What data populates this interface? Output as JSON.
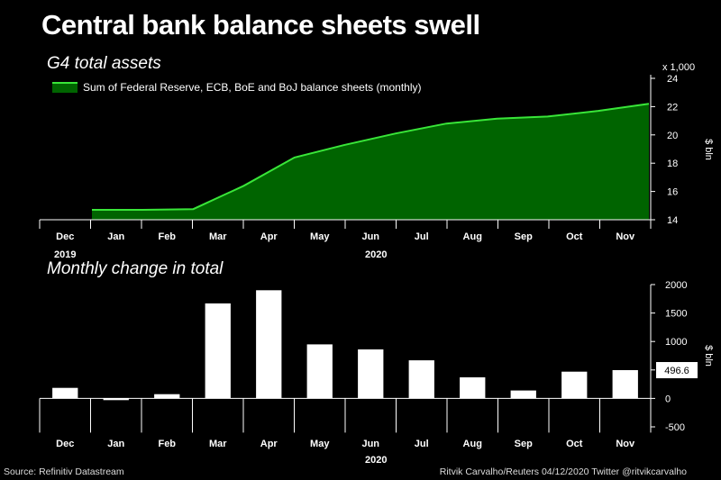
{
  "title": "Central bank balance sheets swell",
  "colors": {
    "area_fill": "#006400",
    "line": "#39e639",
    "bar": "#ffffff",
    "axis": "#ffffff"
  },
  "chart_data": [
    {
      "type": "area",
      "title": "G4 total assets",
      "ylabel": "$ bln",
      "yunit": "x 1,000",
      "ylim": [
        14,
        24
      ],
      "yticks": [
        "14",
        "16",
        "18",
        "20",
        "22",
        "24"
      ],
      "categories": [
        "Dec",
        "Jan",
        "Feb",
        "Mar",
        "Apr",
        "May",
        "Jun",
        "Jul",
        "Aug",
        "Sep",
        "Oct",
        "Nov"
      ],
      "year_labels": {
        "Dec": "2019",
        "Jun": "2020"
      },
      "series": [
        {
          "name": "Sum of Federal Reserve, ECB, BoE and BoJ balance sheets (monthly)",
          "values": [
            14.7,
            14.7,
            14.75,
            16.4,
            18.4,
            19.3,
            20.1,
            20.8,
            21.15,
            21.3,
            21.7,
            22.2
          ]
        }
      ],
      "legend": "top-left"
    },
    {
      "type": "bar",
      "title": "Monthly change in total",
      "ylabel": "$ bln",
      "ylim": [
        -500,
        2000
      ],
      "yticks": [
        "-500",
        "0",
        "500",
        "1000",
        "1500",
        "2000"
      ],
      "categories": [
        "Dec",
        "Jan",
        "Feb",
        "Mar",
        "Apr",
        "May",
        "Jun",
        "Jul",
        "Aug",
        "Sep",
        "Oct",
        "Nov"
      ],
      "year_labels": {
        "Jun": "2020"
      },
      "values": [
        185,
        -30,
        75,
        1670,
        1900,
        950,
        860,
        670,
        370,
        140,
        470,
        496.6
      ],
      "annotation": {
        "category": "Nov",
        "text": "496.6"
      }
    }
  ],
  "footer": {
    "source": "Source: Refinitiv Datastream",
    "credit": "Ritvik Carvalho/Reuters 04/12/2020 Twitter @ritvikcarvalho"
  }
}
